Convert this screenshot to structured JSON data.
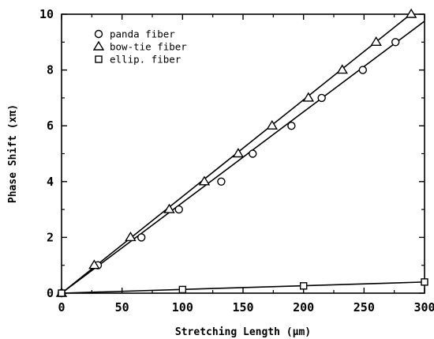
{
  "chart_data": {
    "type": "scatter",
    "title": "",
    "xlabel": "Stretching Length (µm)",
    "ylabel": "Phase Shift (xπ)",
    "xlim": [
      0,
      300
    ],
    "ylim": [
      0,
      10
    ],
    "xticks": [
      "0",
      "50",
      "100",
      "150",
      "200",
      "250",
      "300"
    ],
    "yticks": [
      "0",
      "2",
      "4",
      "6",
      "8",
      "10"
    ],
    "grid": false,
    "legend_position": "top-left",
    "series": [
      {
        "name": "panda fiber",
        "marker": "circle",
        "points": [
          [
            0,
            0
          ],
          [
            30,
            1
          ],
          [
            66,
            2
          ],
          [
            97,
            3
          ],
          [
            132,
            4
          ],
          [
            158,
            5
          ],
          [
            190,
            6
          ],
          [
            215,
            7
          ],
          [
            249,
            8
          ],
          [
            276,
            9
          ]
        ],
        "fit_line": [
          [
            0,
            0
          ],
          [
            300,
            9.75
          ]
        ]
      },
      {
        "name": "bow-tie fiber",
        "marker": "triangle",
        "points": [
          [
            0,
            0
          ],
          [
            27,
            1
          ],
          [
            57,
            2
          ],
          [
            89,
            3
          ],
          [
            118,
            4
          ],
          [
            146,
            5
          ],
          [
            174,
            6
          ],
          [
            204,
            7
          ],
          [
            232,
            8
          ],
          [
            260,
            9
          ],
          [
            289,
            10
          ]
        ],
        "fit_line": [
          [
            0,
            0
          ],
          [
            290,
            10.05
          ]
        ]
      },
      {
        "name": "ellip. fiber",
        "marker": "square",
        "points": [
          [
            0,
            0
          ],
          [
            100,
            0.13
          ],
          [
            200,
            0.26
          ],
          [
            300,
            0.4
          ]
        ],
        "fit_line": [
          [
            0,
            0
          ],
          [
            300,
            0.4
          ]
        ]
      }
    ]
  }
}
